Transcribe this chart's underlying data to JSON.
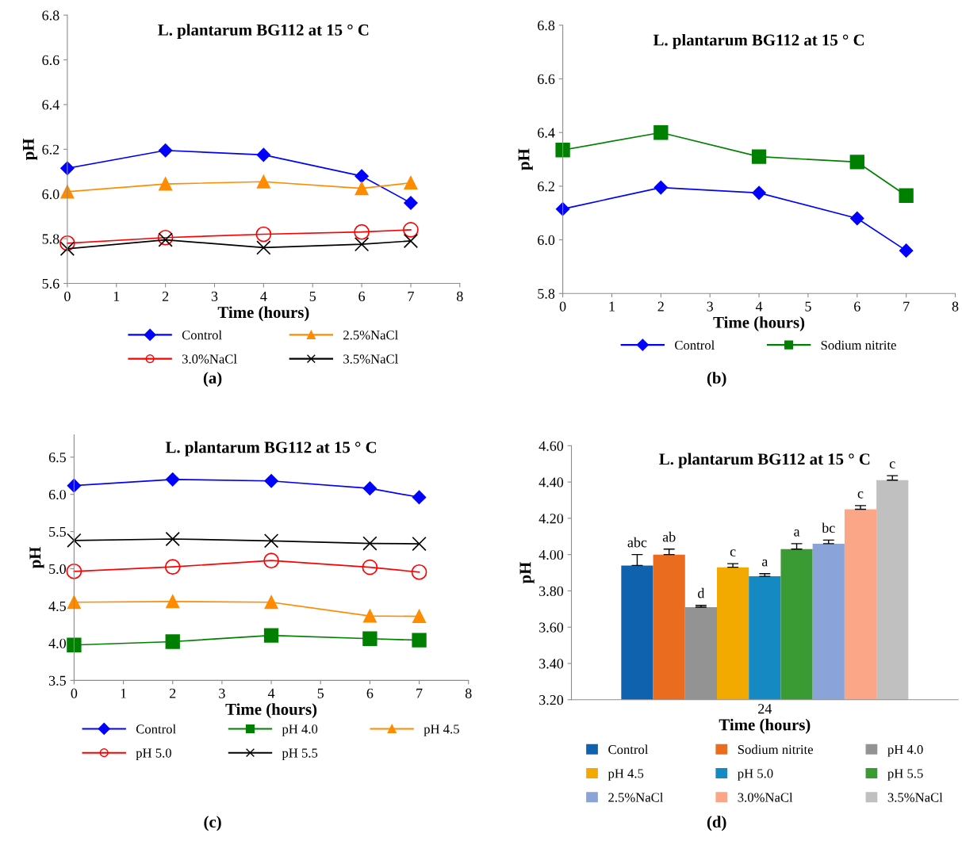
{
  "chart_data": [
    {
      "type": "line",
      "title": "L. plantarum BG112 at 15 ° C",
      "xlabel": "Time (hours)",
      "ylabel": "pH",
      "annotations": [
        "(a)"
      ],
      "xlim": [
        0,
        8
      ],
      "xticks": [
        0,
        1,
        2,
        3,
        4,
        5,
        6,
        7,
        8
      ],
      "ylim": [
        5.6,
        6.8
      ],
      "yticks": [
        5.6,
        5.8,
        {
          "value": 6.0,
          "label": "6.0"
        },
        6.2,
        6.4,
        6.6,
        6.8
      ],
      "legend": "bottom",
      "grid": false,
      "x": [
        0,
        2,
        4,
        6,
        7
      ],
      "series": [
        {
          "name": "Control",
          "color": "#0000ff",
          "marker": "diamond",
          "values": [
            6.115,
            6.195,
            6.175,
            6.08,
            5.96
          ]
        },
        {
          "name": "2.5%NaCl",
          "color": "#ff8c00",
          "marker": "triangle",
          "values": [
            6.01,
            6.045,
            6.055,
            6.025,
            6.05
          ]
        },
        {
          "name": "3.0%NaCl",
          "color": "#ff0000",
          "marker": "circle",
          "values": [
            5.78,
            5.805,
            5.82,
            5.83,
            5.84
          ]
        },
        {
          "name": "3.5%NaCl",
          "color": "#000000",
          "marker": "cross",
          "values": [
            5.755,
            5.795,
            5.76,
            5.775,
            5.79
          ]
        }
      ]
    },
    {
      "type": "line",
      "title": "L. plantarum BG112 at 15 ° C",
      "xlabel": "Time (hours)",
      "ylabel": "pH",
      "annotations": [
        "(b)"
      ],
      "xlim": [
        0,
        8
      ],
      "xticks": [
        0,
        1,
        2,
        3,
        4,
        5,
        6,
        7,
        8
      ],
      "ylim": [
        5.8,
        6.8
      ],
      "yticks": [
        5.8,
        {
          "value": 6.0,
          "label": "6.0"
        },
        6.2,
        6.4,
        6.6,
        6.8
      ],
      "legend": "bottom",
      "grid": false,
      "x": [
        0,
        2,
        4,
        6,
        7
      ],
      "series": [
        {
          "name": "Control",
          "color": "#0000ff",
          "marker": "diamond",
          "values": [
            6.115,
            6.195,
            6.175,
            6.08,
            5.96
          ]
        },
        {
          "name": "Sodium nitrite",
          "color": "#008000",
          "marker": "square",
          "values": [
            6.335,
            6.4,
            6.31,
            6.29,
            6.165
          ]
        }
      ]
    },
    {
      "type": "line",
      "title": "L. plantarum BG112 at 15 ° C",
      "xlabel": "Time (hours)",
      "ylabel": "pH",
      "annotations": [
        "(c)"
      ],
      "xlim": [
        0,
        8
      ],
      "xticks": [
        0,
        1,
        2,
        3,
        4,
        5,
        6,
        7,
        8
      ],
      "ylim": [
        3.5,
        6.8
      ],
      "yticks": [
        3.5,
        {
          "value": 4.0,
          "label": "4.0"
        },
        4.5,
        {
          "value": 5.0,
          "label": "5.0"
        },
        5.5,
        {
          "value": 6.0,
          "label": "6.0"
        },
        6.5
      ],
      "legend": "bottom",
      "grid": false,
      "x": [
        0,
        2,
        4,
        6,
        7
      ],
      "series": [
        {
          "name": "Control",
          "color": "#0000ff",
          "marker": "diamond",
          "values": [
            6.117,
            6.2,
            6.18,
            6.08,
            5.96
          ]
        },
        {
          "name": "pH 4.0",
          "color": "#008000",
          "marker": "square",
          "values": [
            3.975,
            4.02,
            4.105,
            4.06,
            4.04
          ]
        },
        {
          "name": "pH 4.5",
          "color": "#ff8c00",
          "marker": "triangle",
          "values": [
            4.55,
            4.56,
            4.55,
            4.365,
            4.36
          ]
        },
        {
          "name": "pH 5.0",
          "color": "#ff0000",
          "marker": "circle",
          "values": [
            4.965,
            5.025,
            5.11,
            5.02,
            4.955
          ]
        },
        {
          "name": "pH 5.5",
          "color": "#000000",
          "marker": "cross",
          "values": [
            5.38,
            5.4,
            5.375,
            5.34,
            5.335
          ]
        }
      ]
    },
    {
      "type": "bar",
      "title": "L. plantarum BG112 at 15 ° C",
      "xlabel": "Time (hours)",
      "ylabel": "pH",
      "annotations": [
        "(d)"
      ],
      "categories": [
        "24"
      ],
      "ylim": [
        3.2,
        4.6
      ],
      "yticks": [
        {
          "value": 3.2,
          "label": "3.20"
        },
        {
          "value": 3.4,
          "label": "3.40"
        },
        {
          "value": 3.6,
          "label": "3.60"
        },
        {
          "value": 3.8,
          "label": "3.80"
        },
        {
          "value": 4.0,
          "label": "4.00"
        },
        {
          "value": 4.2,
          "label": "4.20"
        },
        {
          "value": 4.4,
          "label": "4.40"
        },
        {
          "value": 4.6,
          "label": "4.60"
        }
      ],
      "legend": "bottom",
      "grid": false,
      "series": [
        {
          "name": "Control",
          "color": "#0f62ae",
          "values": [
            3.94
          ],
          "errors": [
            [
              3.94,
              4.0
            ]
          ],
          "value_labels": [
            "abc"
          ]
        },
        {
          "name": "Sodium nitrite",
          "color": "#ea6c1f",
          "values": [
            4.0
          ],
          "errors": [
            [
              4.0,
              4.03
            ]
          ],
          "value_labels": [
            "ab"
          ]
        },
        {
          "name": "pH 4.0",
          "color": "#939393",
          "values": [
            3.71
          ],
          "errors": [
            [
              3.71,
              3.72
            ]
          ],
          "value_labels": [
            "d"
          ]
        },
        {
          "name": "pH 4.5",
          "color": "#f2aa00",
          "values": [
            3.93
          ],
          "errors": [
            [
              3.93,
              3.95
            ]
          ],
          "value_labels": [
            "c"
          ]
        },
        {
          "name": "pH 5.0",
          "color": "#1589c1",
          "values": [
            3.88
          ],
          "errors": [
            [
              3.88,
              3.895
            ]
          ],
          "value_labels": [
            "a"
          ]
        },
        {
          "name": "pH 5.5",
          "color": "#3a9a33",
          "values": [
            4.03
          ],
          "errors": [
            [
              4.03,
              4.06
            ]
          ],
          "value_labels": [
            "a"
          ]
        },
        {
          "name": "2.5%NaCl",
          "color": "#8aa4d9",
          "values": [
            4.06
          ],
          "errors": [
            [
              4.06,
              4.08
            ]
          ],
          "value_labels": [
            "bc"
          ]
        },
        {
          "name": "3.0%NaCl",
          "color": "#fca688",
          "values": [
            4.25
          ],
          "errors": [
            [
              4.25,
              4.27
            ]
          ],
          "value_labels": [
            "c"
          ]
        },
        {
          "name": "3.5%NaCl",
          "color": "#c0c0c0",
          "values": [
            4.41
          ],
          "errors": [
            [
              4.41,
              4.435
            ]
          ],
          "value_labels": [
            "c"
          ]
        }
      ]
    }
  ]
}
